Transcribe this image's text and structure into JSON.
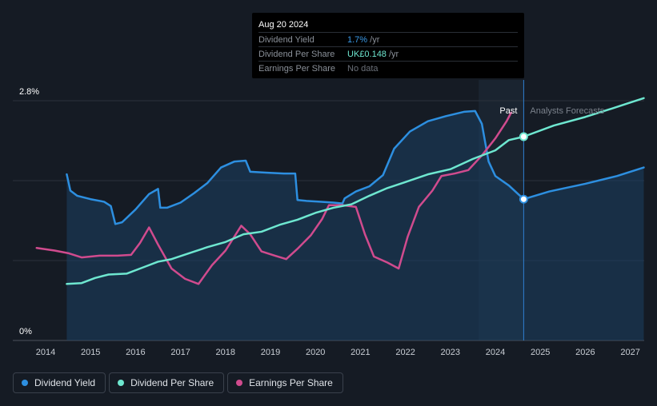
{
  "tooltip": {
    "date": "Aug 20 2024",
    "rows": [
      {
        "label": "Dividend Yield",
        "value": "1.7%",
        "unit": " /yr",
        "color": "#3a9ae8"
      },
      {
        "label": "Dividend Per Share",
        "value": "UK£0.148",
        "unit": " /yr",
        "color": "#6ee7d0"
      },
      {
        "label": "Earnings Per Share",
        "value": "No data",
        "unit": "",
        "color": "#6b7079"
      }
    ]
  },
  "legend": [
    {
      "label": "Dividend Yield",
      "color": "#2d8fe0"
    },
    {
      "label": "Dividend Per Share",
      "color": "#6ee7d0"
    },
    {
      "label": "Earnings Per Share",
      "color": "#d04b8e"
    }
  ],
  "chart_data": {
    "type": "line",
    "title": "",
    "xlabel": "",
    "ylabel": "",
    "xlim": [
      2013.8,
      2027.3
    ],
    "ylim": [
      0,
      2.8
    ],
    "y_ticks": [
      {
        "value": 2.8,
        "label": "2.8%"
      },
      {
        "value": 0,
        "label": "0%"
      }
    ],
    "x_ticks": [
      2014,
      2015,
      2016,
      2017,
      2018,
      2019,
      2020,
      2021,
      2022,
      2023,
      2024,
      2025,
      2026,
      2027
    ],
    "x_tick_labels": [
      "2014",
      "2015",
      "2016",
      "2017",
      "2018",
      "2019",
      "2020",
      "2021",
      "2022",
      "2023",
      "2024",
      "2025",
      "2026",
      "2027"
    ],
    "past_label": "Past",
    "forecast_label": "Analysts Forecasts",
    "forecast_start": 2024.63,
    "series": [
      {
        "name": "Dividend Yield",
        "color": "#2d8fe0",
        "filled": true,
        "points": [
          [
            2014.47,
            1.94
          ],
          [
            2014.55,
            1.75
          ],
          [
            2014.7,
            1.69
          ],
          [
            2015.0,
            1.65
          ],
          [
            2015.3,
            1.62
          ],
          [
            2015.45,
            1.57
          ],
          [
            2015.55,
            1.36
          ],
          [
            2015.7,
            1.38
          ],
          [
            2016.0,
            1.53
          ],
          [
            2016.3,
            1.71
          ],
          [
            2016.5,
            1.77
          ],
          [
            2016.55,
            1.55
          ],
          [
            2016.7,
            1.55
          ],
          [
            2017.0,
            1.61
          ],
          [
            2017.3,
            1.72
          ],
          [
            2017.6,
            1.84
          ],
          [
            2017.9,
            2.02
          ],
          [
            2018.2,
            2.09
          ],
          [
            2018.45,
            2.1
          ],
          [
            2018.55,
            1.97
          ],
          [
            2018.9,
            1.96
          ],
          [
            2019.3,
            1.95
          ],
          [
            2019.55,
            1.95
          ],
          [
            2019.6,
            1.64
          ],
          [
            2019.8,
            1.63
          ],
          [
            2020.1,
            1.62
          ],
          [
            2020.4,
            1.61
          ],
          [
            2020.6,
            1.6
          ],
          [
            2020.65,
            1.66
          ],
          [
            2020.9,
            1.74
          ],
          [
            2021.2,
            1.8
          ],
          [
            2021.5,
            1.93
          ],
          [
            2021.75,
            2.24
          ],
          [
            2022.1,
            2.44
          ],
          [
            2022.5,
            2.56
          ],
          [
            2022.9,
            2.62
          ],
          [
            2023.3,
            2.67
          ],
          [
            2023.55,
            2.68
          ],
          [
            2023.7,
            2.53
          ],
          [
            2023.85,
            2.09
          ],
          [
            2024.0,
            1.92
          ],
          [
            2024.3,
            1.81
          ],
          [
            2024.63,
            1.65
          ],
          [
            2025.2,
            1.74
          ],
          [
            2026.0,
            1.83
          ],
          [
            2026.7,
            1.92
          ],
          [
            2027.3,
            2.02
          ]
        ]
      },
      {
        "name": "Dividend Per Share",
        "color": "#6ee7d0",
        "filled": false,
        "points": [
          [
            2014.47,
            0.66
          ],
          [
            2014.8,
            0.67
          ],
          [
            2015.1,
            0.73
          ],
          [
            2015.4,
            0.77
          ],
          [
            2015.8,
            0.78
          ],
          [
            2016.2,
            0.86
          ],
          [
            2016.5,
            0.92
          ],
          [
            2016.8,
            0.95
          ],
          [
            2017.2,
            1.02
          ],
          [
            2017.6,
            1.09
          ],
          [
            2018.0,
            1.15
          ],
          [
            2018.4,
            1.24
          ],
          [
            2018.8,
            1.27
          ],
          [
            2019.2,
            1.35
          ],
          [
            2019.6,
            1.41
          ],
          [
            2020.0,
            1.49
          ],
          [
            2020.4,
            1.55
          ],
          [
            2020.8,
            1.59
          ],
          [
            2021.2,
            1.69
          ],
          [
            2021.6,
            1.78
          ],
          [
            2022.0,
            1.85
          ],
          [
            2022.5,
            1.94
          ],
          [
            2023.0,
            2.0
          ],
          [
            2023.5,
            2.12
          ],
          [
            2024.0,
            2.22
          ],
          [
            2024.3,
            2.34
          ],
          [
            2024.63,
            2.38
          ],
          [
            2025.3,
            2.51
          ],
          [
            2026.0,
            2.61
          ],
          [
            2026.6,
            2.71
          ],
          [
            2027.3,
            2.83
          ]
        ]
      },
      {
        "name": "Earnings Per Share",
        "color": "#d04b8e",
        "filled": false,
        "points": [
          [
            2013.8,
            1.08
          ],
          [
            2014.2,
            1.05
          ],
          [
            2014.5,
            1.02
          ],
          [
            2014.8,
            0.97
          ],
          [
            2015.2,
            0.99
          ],
          [
            2015.6,
            0.99
          ],
          [
            2015.9,
            1.0
          ],
          [
            2016.1,
            1.14
          ],
          [
            2016.3,
            1.32
          ],
          [
            2016.5,
            1.12
          ],
          [
            2016.8,
            0.84
          ],
          [
            2017.1,
            0.72
          ],
          [
            2017.4,
            0.66
          ],
          [
            2017.7,
            0.88
          ],
          [
            2018.0,
            1.05
          ],
          [
            2018.35,
            1.34
          ],
          [
            2018.55,
            1.24
          ],
          [
            2018.8,
            1.04
          ],
          [
            2019.1,
            0.99
          ],
          [
            2019.35,
            0.95
          ],
          [
            2019.6,
            1.07
          ],
          [
            2019.9,
            1.23
          ],
          [
            2020.15,
            1.42
          ],
          [
            2020.3,
            1.58
          ],
          [
            2020.6,
            1.58
          ],
          [
            2020.9,
            1.56
          ],
          [
            2021.1,
            1.24
          ],
          [
            2021.3,
            0.98
          ],
          [
            2021.6,
            0.91
          ],
          [
            2021.85,
            0.84
          ],
          [
            2022.05,
            1.21
          ],
          [
            2022.3,
            1.56
          ],
          [
            2022.6,
            1.75
          ],
          [
            2022.8,
            1.92
          ],
          [
            2023.1,
            1.95
          ],
          [
            2023.4,
            1.99
          ],
          [
            2023.7,
            2.16
          ],
          [
            2024.0,
            2.36
          ],
          [
            2024.25,
            2.56
          ],
          [
            2024.35,
            2.66
          ]
        ]
      }
    ],
    "markers": [
      {
        "series": "Dividend Yield",
        "x": 2024.63,
        "y": 1.65
      },
      {
        "series": "Dividend Per Share",
        "x": 2024.63,
        "y": 2.38
      }
    ]
  }
}
